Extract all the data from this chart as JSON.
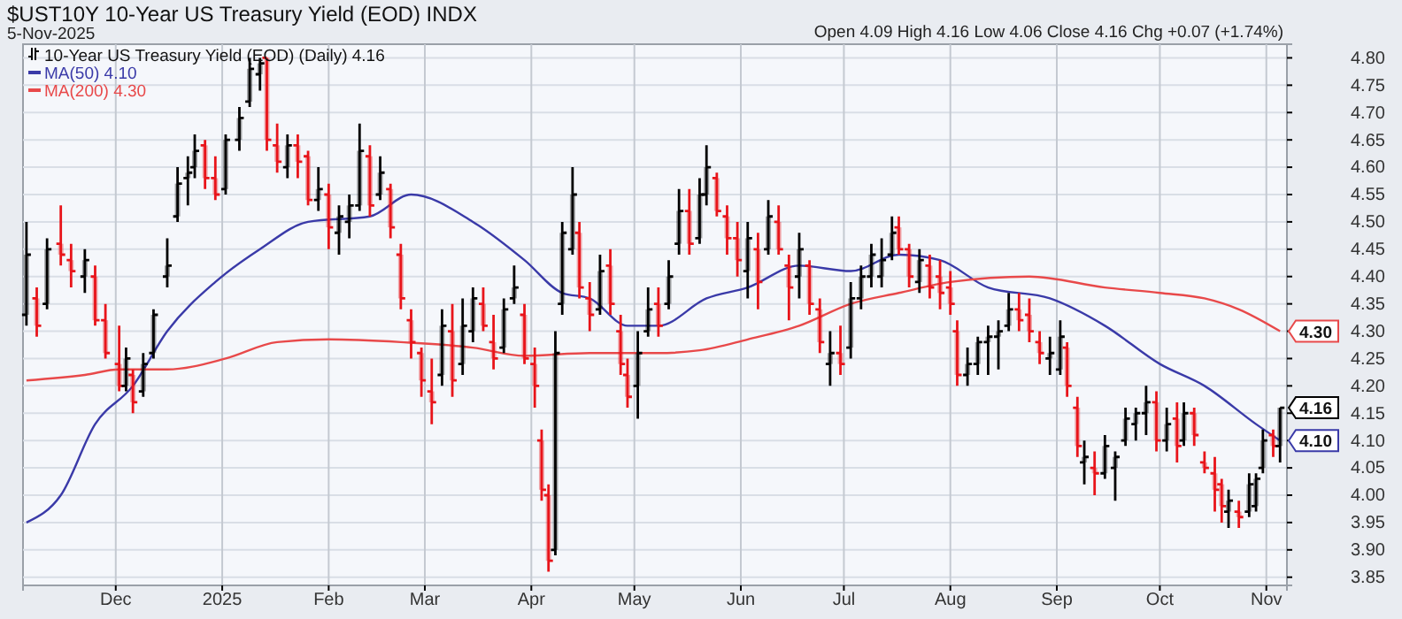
{
  "chart_data": {
    "type": "candlestick",
    "title": "$UST10Y 10-Year US Treasury Yield (EOD) INDX",
    "subtitle": "5-Nov-2025",
    "annotations": [
      "Open 4.09 High 4.16 Low 4.06 Close 4.16 Chg +0.07 (+1.74%)",
      {
        "text": "4.30",
        "x": "2025-11-05",
        "y": 4.3
      },
      {
        "text": "4.16",
        "x": "2025-11-05",
        "y": 4.16
      },
      {
        "text": "4.10",
        "x": "2025-11-05",
        "y": 4.1
      }
    ],
    "xlim": [
      "2024-11-04",
      "2025-11-07"
    ],
    "xticks": [
      {
        "value": "2024-12-01",
        "label": "Dec"
      },
      {
        "value": "2025-01-01",
        "label": "2025"
      },
      {
        "value": "2025-02-01",
        "label": "Feb"
      },
      {
        "value": "2025-03-01",
        "label": "Mar"
      },
      {
        "value": "2025-04-01",
        "label": "Apr"
      },
      {
        "value": "2025-05-01",
        "label": "May"
      },
      {
        "value": "2025-06-01",
        "label": "Jun"
      },
      {
        "value": "2025-07-01",
        "label": "Jul"
      },
      {
        "value": "2025-08-01",
        "label": "Aug"
      },
      {
        "value": "2025-09-01",
        "label": "Sep"
      },
      {
        "value": "2025-10-01",
        "label": "Oct"
      },
      {
        "value": "2025-11-01",
        "label": "Nov"
      }
    ],
    "ylim": [
      3.835,
      4.825
    ],
    "yticks": [
      {
        "value": 3.85,
        "label": "3.85"
      },
      {
        "value": 3.9,
        "label": "3.90"
      },
      {
        "value": 3.95,
        "label": "3.95"
      },
      {
        "value": 4.0,
        "label": "4.00"
      },
      {
        "value": 4.05,
        "label": "4.05"
      },
      {
        "value": 4.1,
        "label": "4.10"
      },
      {
        "value": 4.15,
        "label": "4.15"
      },
      {
        "value": 4.2,
        "label": "4.20"
      },
      {
        "value": 4.25,
        "label": "4.25"
      },
      {
        "value": 4.3,
        "label": "4.30"
      },
      {
        "value": 4.35,
        "label": "4.35"
      },
      {
        "value": 4.4,
        "label": "4.40"
      },
      {
        "value": 4.45,
        "label": "4.45"
      },
      {
        "value": 4.5,
        "label": "4.50"
      },
      {
        "value": 4.55,
        "label": "4.55"
      },
      {
        "value": 4.6,
        "label": "4.60"
      },
      {
        "value": 4.65,
        "label": "4.65"
      },
      {
        "value": 4.7,
        "label": "4.70"
      },
      {
        "value": 4.75,
        "label": "4.75"
      },
      {
        "value": 4.8,
        "label": "4.80"
      }
    ],
    "grid": true,
    "legend": "top left",
    "series": [
      {
        "name": "10-Year US Treasury Yield (EOD) (Daily) 4.16",
        "x": [
          "2024-11-05",
          "2024-11-08",
          "2024-11-11",
          "2024-11-15",
          "2024-11-18",
          "2024-11-22",
          "2024-11-25",
          "2024-11-28",
          "2024-12-02",
          "2024-12-04",
          "2024-12-06",
          "2024-12-09",
          "2024-12-12",
          "2024-12-16",
          "2024-12-19",
          "2024-12-22",
          "2024-12-24",
          "2024-12-27",
          "2024-12-30",
          "2025-01-02",
          "2025-01-06",
          "2025-01-09",
          "2025-01-12",
          "2025-01-14",
          "2025-01-17",
          "2025-01-20",
          "2025-01-23",
          "2025-01-26",
          "2025-01-29",
          "2025-02-01",
          "2025-02-04",
          "2025-02-07",
          "2025-02-10",
          "2025-02-13",
          "2025-02-16",
          "2025-02-19",
          "2025-02-22",
          "2025-02-25",
          "2025-02-28",
          "2025-03-03",
          "2025-03-06",
          "2025-03-09",
          "2025-03-12",
          "2025-03-15",
          "2025-03-18",
          "2025-03-21",
          "2025-03-24",
          "2025-03-27",
          "2025-03-30",
          "2025-04-02",
          "2025-04-04",
          "2025-04-06",
          "2025-04-08",
          "2025-04-10",
          "2025-04-13",
          "2025-04-15",
          "2025-04-18",
          "2025-04-21",
          "2025-04-24",
          "2025-04-27",
          "2025-04-29",
          "2025-05-02",
          "2025-05-05",
          "2025-05-08",
          "2025-05-11",
          "2025-05-14",
          "2025-05-17",
          "2025-05-20",
          "2025-05-22",
          "2025-05-25",
          "2025-05-28",
          "2025-05-31",
          "2025-06-03",
          "2025-06-06",
          "2025-06-09",
          "2025-06-12",
          "2025-06-15",
          "2025-06-18",
          "2025-06-21",
          "2025-06-24",
          "2025-06-27",
          "2025-06-30",
          "2025-07-03",
          "2025-07-06",
          "2025-07-09",
          "2025-07-12",
          "2025-07-15",
          "2025-07-17",
          "2025-07-20",
          "2025-07-23",
          "2025-07-26",
          "2025-07-29",
          "2025-08-01",
          "2025-08-03",
          "2025-08-06",
          "2025-08-09",
          "2025-08-12",
          "2025-08-15",
          "2025-08-18",
          "2025-08-21",
          "2025-08-24",
          "2025-08-27",
          "2025-08-30",
          "2025-09-02",
          "2025-09-04",
          "2025-09-07",
          "2025-09-09",
          "2025-09-12",
          "2025-09-15",
          "2025-09-18",
          "2025-09-21",
          "2025-09-24",
          "2025-09-27",
          "2025-09-30",
          "2025-10-03",
          "2025-10-06",
          "2025-10-08",
          "2025-10-11",
          "2025-10-14",
          "2025-10-17",
          "2025-10-19",
          "2025-10-21",
          "2025-10-24",
          "2025-10-27",
          "2025-10-29",
          "2025-10-31",
          "2025-11-03",
          "2025-11-05"
        ],
        "ohlc": [
          [
            4.33,
            4.5,
            4.31,
            4.44
          ],
          [
            4.36,
            4.38,
            4.29,
            4.31
          ],
          [
            4.35,
            4.47,
            4.34,
            4.45
          ],
          [
            4.46,
            4.53,
            4.42,
            4.44
          ],
          [
            4.43,
            4.46,
            4.38,
            4.41
          ],
          [
            4.4,
            4.45,
            4.37,
            4.43
          ],
          [
            4.4,
            4.42,
            4.31,
            4.32
          ],
          [
            4.32,
            4.35,
            4.25,
            4.26
          ],
          [
            4.24,
            4.31,
            4.19,
            4.2
          ],
          [
            4.2,
            4.27,
            4.19,
            4.25
          ],
          [
            4.22,
            4.23,
            4.15,
            4.17
          ],
          [
            4.19,
            4.26,
            4.18,
            4.24
          ],
          [
            4.26,
            4.34,
            4.25,
            4.33
          ],
          [
            4.4,
            4.47,
            4.38,
            4.42
          ],
          [
            4.51,
            4.6,
            4.5,
            4.57
          ],
          [
            4.58,
            4.62,
            4.53,
            4.59
          ],
          [
            4.6,
            4.66,
            4.58,
            4.63
          ],
          [
            4.64,
            4.65,
            4.56,
            4.58
          ],
          [
            4.58,
            4.62,
            4.54,
            4.55
          ],
          [
            4.56,
            4.66,
            4.55,
            4.65
          ],
          [
            4.65,
            4.71,
            4.63,
            4.69
          ],
          [
            4.72,
            4.8,
            4.71,
            4.78
          ],
          [
            4.77,
            4.8,
            4.74,
            4.79
          ],
          [
            4.8,
            4.8,
            4.63,
            4.65
          ],
          [
            4.64,
            4.68,
            4.59,
            4.61
          ],
          [
            4.6,
            4.66,
            4.58,
            4.64
          ],
          [
            4.64,
            4.66,
            4.58,
            4.61
          ],
          [
            4.62,
            4.63,
            4.53,
            4.54
          ],
          [
            4.54,
            4.6,
            4.52,
            4.56
          ],
          [
            4.55,
            4.57,
            4.45,
            4.49
          ],
          [
            4.48,
            4.53,
            4.44,
            4.51
          ],
          [
            4.5,
            4.55,
            4.47,
            4.53
          ],
          [
            4.53,
            4.68,
            4.52,
            4.63
          ],
          [
            4.62,
            4.64,
            4.51,
            4.53
          ],
          [
            4.55,
            4.62,
            4.54,
            4.59
          ],
          [
            4.56,
            4.57,
            4.47,
            4.49
          ],
          [
            4.44,
            4.46,
            4.34,
            4.36
          ],
          [
            4.32,
            4.34,
            4.25,
            4.28
          ],
          [
            4.26,
            4.27,
            4.18,
            4.21
          ],
          [
            4.19,
            4.25,
            4.13,
            4.17
          ],
          [
            4.22,
            4.34,
            4.2,
            4.31
          ],
          [
            4.3,
            4.35,
            4.18,
            4.21
          ],
          [
            4.24,
            4.36,
            4.22,
            4.31
          ],
          [
            4.3,
            4.38,
            4.28,
            4.36
          ],
          [
            4.35,
            4.38,
            4.3,
            4.31
          ],
          [
            4.28,
            4.33,
            4.23,
            4.25
          ],
          [
            4.27,
            4.36,
            4.26,
            4.34
          ],
          [
            4.36,
            4.42,
            4.35,
            4.38
          ],
          [
            4.33,
            4.35,
            4.24,
            4.25
          ],
          [
            4.24,
            4.27,
            4.16,
            4.2
          ],
          [
            4.1,
            4.12,
            3.99,
            4.01
          ],
          [
            4.0,
            4.02,
            3.86,
            3.88
          ],
          [
            3.9,
            4.3,
            3.89,
            4.26
          ],
          [
            4.35,
            4.5,
            4.33,
            4.48
          ],
          [
            4.45,
            4.6,
            4.44,
            4.55
          ],
          [
            4.48,
            4.5,
            4.36,
            4.38
          ],
          [
            4.36,
            4.39,
            4.3,
            4.33
          ],
          [
            4.34,
            4.44,
            4.33,
            4.41
          ],
          [
            4.42,
            4.45,
            4.33,
            4.35
          ],
          [
            4.3,
            4.33,
            4.22,
            4.24
          ],
          [
            4.22,
            4.25,
            4.16,
            4.18
          ],
          [
            4.2,
            4.3,
            4.14,
            4.26
          ],
          [
            4.3,
            4.38,
            4.29,
            4.34
          ],
          [
            4.35,
            4.38,
            4.29,
            4.31
          ],
          [
            4.35,
            4.43,
            4.34,
            4.4
          ],
          [
            4.46,
            4.56,
            4.44,
            4.52
          ],
          [
            4.52,
            4.56,
            4.44,
            4.46
          ],
          [
            4.47,
            4.58,
            4.46,
            4.55
          ],
          [
            4.55,
            4.64,
            4.53,
            4.6
          ],
          [
            4.58,
            4.59,
            4.51,
            4.52
          ],
          [
            4.51,
            4.53,
            4.44,
            4.47
          ],
          [
            4.47,
            4.5,
            4.4,
            4.43
          ],
          [
            4.41,
            4.5,
            4.36,
            4.47
          ],
          [
            4.45,
            4.48,
            4.34,
            4.39
          ],
          [
            4.45,
            4.54,
            4.44,
            4.51
          ],
          [
            4.5,
            4.53,
            4.44,
            4.45
          ],
          [
            4.42,
            4.44,
            4.32,
            4.38
          ],
          [
            4.4,
            4.48,
            4.36,
            4.45
          ],
          [
            4.42,
            4.43,
            4.33,
            4.35
          ],
          [
            4.34,
            4.36,
            4.26,
            4.28
          ],
          [
            4.24,
            4.3,
            4.2,
            4.26
          ],
          [
            4.26,
            4.31,
            4.22,
            4.24
          ],
          [
            4.27,
            4.39,
            4.25,
            4.36
          ],
          [
            4.36,
            4.42,
            4.34,
            4.4
          ],
          [
            4.4,
            4.46,
            4.38,
            4.44
          ],
          [
            4.4,
            4.47,
            4.38,
            4.43
          ],
          [
            4.44,
            4.51,
            4.43,
            4.48
          ],
          [
            4.49,
            4.51,
            4.44,
            4.45
          ],
          [
            4.45,
            4.46,
            4.38,
            4.4
          ],
          [
            4.39,
            4.45,
            4.37,
            4.43
          ],
          [
            4.42,
            4.44,
            4.36,
            4.38
          ],
          [
            4.4,
            4.43,
            4.34,
            4.37
          ],
          [
            4.38,
            4.41,
            4.33,
            4.35
          ],
          [
            4.3,
            4.32,
            4.2,
            4.22
          ],
          [
            4.22,
            4.27,
            4.2,
            4.24
          ],
          [
            4.24,
            4.29,
            4.22,
            4.28
          ],
          [
            4.28,
            4.31,
            4.22,
            4.29
          ],
          [
            4.29,
            4.32,
            4.23,
            4.3
          ],
          [
            4.31,
            4.37,
            4.3,
            4.34
          ],
          [
            4.34,
            4.37,
            4.3,
            4.32
          ],
          [
            4.33,
            4.36,
            4.28,
            4.3
          ],
          [
            4.28,
            4.3,
            4.24,
            4.26
          ],
          [
            4.25,
            4.29,
            4.22,
            4.26
          ],
          [
            4.23,
            4.32,
            4.22,
            4.29
          ],
          [
            4.27,
            4.28,
            4.18,
            4.2
          ],
          [
            4.16,
            4.18,
            4.07,
            4.09
          ],
          [
            4.06,
            4.1,
            4.02,
            4.07
          ],
          [
            4.05,
            4.08,
            4.0,
            4.04
          ],
          [
            4.04,
            4.11,
            4.03,
            4.09
          ],
          [
            4.05,
            4.08,
            3.99,
            4.07
          ],
          [
            4.1,
            4.16,
            4.09,
            4.14
          ],
          [
            4.13,
            4.16,
            4.1,
            4.15
          ],
          [
            4.15,
            4.2,
            4.11,
            4.17
          ],
          [
            4.17,
            4.19,
            4.08,
            4.1
          ],
          [
            4.1,
            4.16,
            4.08,
            4.13
          ],
          [
            4.14,
            4.17,
            4.06,
            4.09
          ],
          [
            4.1,
            4.17,
            4.09,
            4.15
          ],
          [
            4.15,
            4.16,
            4.09,
            4.11
          ],
          [
            4.06,
            4.08,
            4.04,
            4.05
          ],
          [
            4.04,
            4.07,
            3.97,
            4.01
          ],
          [
            4.02,
            4.03,
            3.95,
            3.98
          ],
          [
            3.97,
            4.01,
            3.94,
            3.99
          ],
          [
            3.97,
            3.99,
            3.94,
            3.96
          ],
          [
            3.97,
            4.04,
            3.96,
            4.02
          ],
          [
            3.98,
            4.04,
            3.97,
            4.03
          ],
          [
            4.05,
            4.12,
            4.04,
            4.1
          ],
          [
            4.11,
            4.12,
            4.07,
            4.09
          ],
          [
            4.09,
            4.16,
            4.06,
            4.16
          ]
        ],
        "colors": [
          "#000000",
          "#e8141a",
          "#000000",
          "#e8141a",
          "#e8141a",
          "#000000",
          "#e8141a",
          "#e8141a",
          "#e8141a",
          "#000000",
          "#e8141a",
          "#000000",
          "#000000",
          "#000000",
          "#000000",
          "#000000",
          "#000000",
          "#e8141a",
          "#e8141a",
          "#000000",
          "#000000",
          "#000000",
          "#000000",
          "#e8141a",
          "#e8141a",
          "#000000",
          "#e8141a",
          "#e8141a",
          "#000000",
          "#e8141a",
          "#000000",
          "#000000",
          "#000000",
          "#e8141a",
          "#000000",
          "#e8141a",
          "#e8141a",
          "#e8141a",
          "#e8141a",
          "#e8141a",
          "#000000",
          "#e8141a",
          "#000000",
          "#000000",
          "#e8141a",
          "#e8141a",
          "#000000",
          "#000000",
          "#e8141a",
          "#e8141a",
          "#e8141a",
          "#e8141a",
          "#000000",
          "#000000",
          "#000000",
          "#e8141a",
          "#e8141a",
          "#000000",
          "#e8141a",
          "#e8141a",
          "#e8141a",
          "#000000",
          "#000000",
          "#e8141a",
          "#000000",
          "#000000",
          "#e8141a",
          "#000000",
          "#000000",
          "#e8141a",
          "#e8141a",
          "#e8141a",
          "#000000",
          "#e8141a",
          "#000000",
          "#e8141a",
          "#e8141a",
          "#000000",
          "#e8141a",
          "#e8141a",
          "#000000",
          "#e8141a",
          "#000000",
          "#000000",
          "#000000",
          "#000000",
          "#000000",
          "#e8141a",
          "#e8141a",
          "#000000",
          "#e8141a",
          "#e8141a",
          "#e8141a",
          "#e8141a",
          "#000000",
          "#000000",
          "#000000",
          "#000000",
          "#000000",
          "#e8141a",
          "#e8141a",
          "#e8141a",
          "#000000",
          "#000000",
          "#e8141a",
          "#e8141a",
          "#000000",
          "#e8141a",
          "#000000",
          "#000000",
          "#000000",
          "#000000",
          "#000000",
          "#e8141a",
          "#000000",
          "#e8141a",
          "#000000",
          "#e8141a",
          "#e8141a",
          "#e8141a",
          "#e8141a",
          "#000000",
          "#e8141a",
          "#000000",
          "#000000",
          "#000000",
          "#e8141a",
          "#000000"
        ]
      },
      {
        "name": "MA(50) 4.10",
        "type": "line",
        "color": "#3a3aa8",
        "x": [
          "2024-11-05",
          "2024-11-15",
          "2024-11-25",
          "2024-12-06",
          "2024-12-16",
          "2024-12-30",
          "2025-01-12",
          "2025-01-26",
          "2025-02-13",
          "2025-02-25",
          "2025-03-15",
          "2025-03-30",
          "2025-04-10",
          "2025-04-18",
          "2025-04-29",
          "2025-05-08",
          "2025-05-22",
          "2025-06-03",
          "2025-06-18",
          "2025-07-03",
          "2025-07-17",
          "2025-07-29",
          "2025-08-12",
          "2025-08-30",
          "2025-09-15",
          "2025-10-01",
          "2025-10-14",
          "2025-10-29",
          "2025-11-05"
        ],
        "values": [
          3.95,
          4.0,
          4.13,
          4.2,
          4.3,
          4.39,
          4.45,
          4.5,
          4.51,
          4.55,
          4.5,
          4.43,
          4.37,
          4.36,
          4.31,
          4.31,
          4.36,
          4.38,
          4.42,
          4.41,
          4.44,
          4.43,
          4.38,
          4.36,
          4.31,
          4.24,
          4.2,
          4.13,
          4.1
        ]
      },
      {
        "name": "MA(200) 4.30",
        "type": "line",
        "color": "#e8494a",
        "x": [
          "2024-11-05",
          "2024-11-22",
          "2024-12-02",
          "2024-12-16",
          "2025-01-02",
          "2025-01-17",
          "2025-02-01",
          "2025-02-22",
          "2025-03-15",
          "2025-03-30",
          "2025-04-18",
          "2025-05-08",
          "2025-05-20",
          "2025-06-03",
          "2025-06-18",
          "2025-07-03",
          "2025-07-17",
          "2025-08-01",
          "2025-08-24",
          "2025-09-15",
          "2025-10-01",
          "2025-10-14",
          "2025-10-24",
          "2025-11-05"
        ],
        "values": [
          4.21,
          4.22,
          4.23,
          4.23,
          4.25,
          4.28,
          4.285,
          4.28,
          4.27,
          4.255,
          4.26,
          4.26,
          4.265,
          4.285,
          4.31,
          4.35,
          4.37,
          4.39,
          4.4,
          4.38,
          4.37,
          4.36,
          4.34,
          4.3
        ]
      }
    ]
  }
}
